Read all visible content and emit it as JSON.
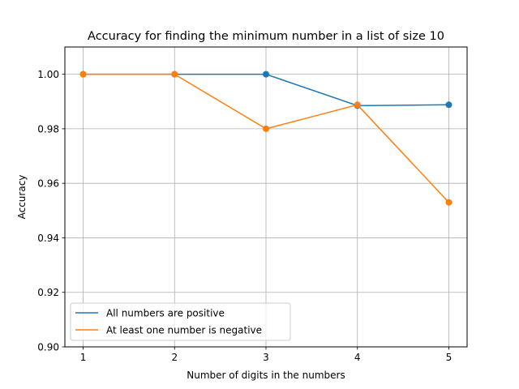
{
  "chart_data": {
    "type": "line",
    "title": "Accuracy for finding the minimum number in a list of size 10",
    "xlabel": "Number of digits in the numbers",
    "ylabel": "Accuracy",
    "x": [
      1,
      2,
      3,
      4,
      5
    ],
    "xlim": [
      0.8,
      5.2
    ],
    "ylim": [
      0.9,
      1.01
    ],
    "xticks": [
      "1",
      "2",
      "3",
      "4",
      "5"
    ],
    "yticks": [
      {
        "value": 0.9,
        "label": "0.90"
      },
      {
        "value": 0.92,
        "label": "0.92"
      },
      {
        "value": 0.94,
        "label": "0.94"
      },
      {
        "value": 0.96,
        "label": "0.96"
      },
      {
        "value": 0.98,
        "label": "0.98"
      },
      {
        "value": 1.0,
        "label": "1.00"
      }
    ],
    "grid": true,
    "legend_position": "lower-left",
    "series": [
      {
        "name": "All numbers are positive",
        "color": "#1f77b4",
        "values": [
          1.0,
          1.0,
          1.0,
          0.9885,
          0.9888
        ]
      },
      {
        "name": "At least one number is negative",
        "color": "#ff7f0e",
        "values": [
          1.0,
          1.0,
          0.98,
          0.9888,
          0.953
        ]
      }
    ]
  }
}
